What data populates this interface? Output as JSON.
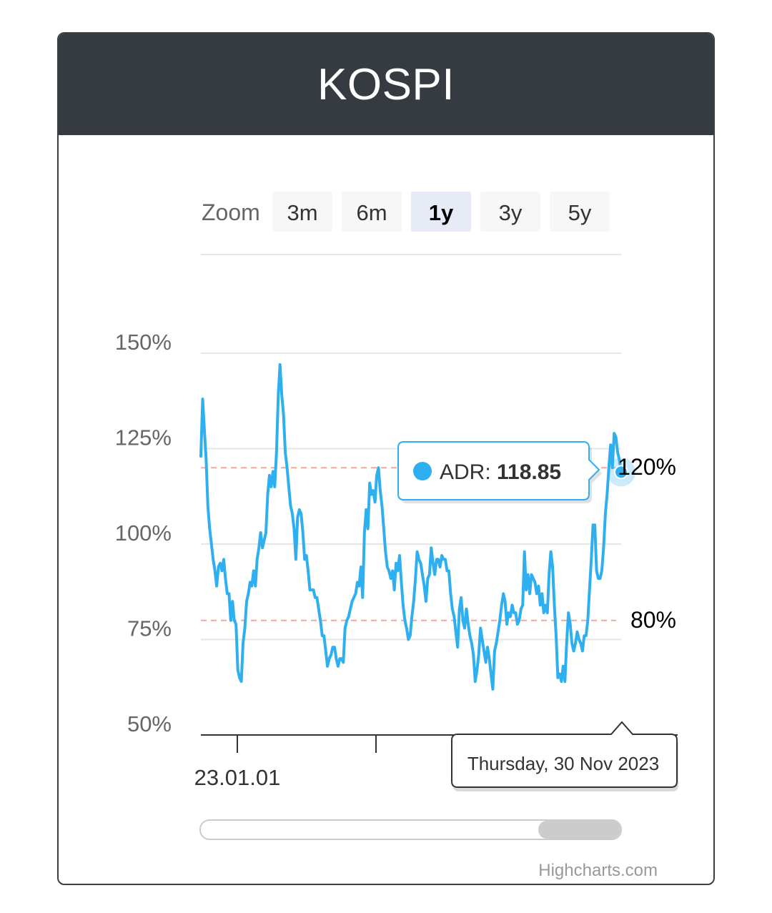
{
  "header": {
    "title": "KOSPI"
  },
  "range_selector": {
    "label": "Zoom",
    "buttons": [
      {
        "label": "3m",
        "active": false
      },
      {
        "label": "6m",
        "active": false
      },
      {
        "label": "1y",
        "active": true
      },
      {
        "label": "3y",
        "active": false
      },
      {
        "label": "5y",
        "active": false
      }
    ]
  },
  "credits": "Highcharts.com",
  "colors": {
    "header_bg": "#363b42",
    "series": "#2eaff0",
    "plot_line": "#f0a8a0",
    "button_bg": "#f7f7f7",
    "button_active_bg": "#e6ebf5"
  },
  "chart_data": {
    "type": "line",
    "y_axis": {
      "min": 50,
      "max": 150,
      "ticks": [
        50,
        75,
        100,
        125,
        150
      ],
      "tick_suffix": "%"
    },
    "x_axis": {
      "tick_labels": [
        "23.01.01"
      ]
    },
    "plot_lines": [
      {
        "value": 120,
        "label": "120%"
      },
      {
        "value": 80,
        "label": "80%"
      }
    ],
    "series": [
      {
        "name": "ADR",
        "values": [
          123,
          138,
          130,
          122,
          110,
          104,
          100,
          96,
          93,
          89,
          94,
          95,
          93,
          96,
          91,
          87,
          87,
          80,
          85,
          80,
          79,
          67,
          65,
          64,
          74,
          78,
          85,
          87,
          90,
          89,
          93,
          89,
          96,
          99,
          103,
          99,
          101,
          103,
          113,
          118,
          115,
          119,
          115,
          124,
          139,
          147,
          139,
          134,
          124,
          120,
          115,
          110,
          108,
          104,
          96,
          107,
          109,
          108,
          103,
          96,
          97,
          93,
          88,
          88,
          88,
          86,
          86,
          83,
          80,
          76,
          76,
          72,
          68,
          70,
          71,
          73,
          73,
          70,
          68,
          70,
          70,
          69,
          78,
          80,
          81,
          83,
          85,
          86,
          87,
          90,
          89,
          94,
          86,
          103,
          109,
          104,
          116,
          113,
          114,
          111,
          118,
          120,
          114,
          110,
          104,
          98,
          94,
          93,
          91,
          93,
          88,
          95,
          93,
          97,
          90,
          84,
          80,
          78,
          75,
          76,
          81,
          85,
          91,
          98,
          96,
          95,
          92,
          89,
          85,
          91,
          92,
          99,
          95,
          92,
          96,
          96,
          94,
          97,
          96,
          96,
          93,
          93,
          87,
          83,
          81,
          77,
          73,
          83,
          86,
          80,
          78,
          83,
          79,
          76,
          74,
          71,
          64,
          67,
          71,
          78,
          75,
          72,
          69,
          73,
          70,
          66,
          62,
          72,
          74,
          77,
          80,
          84,
          87,
          85,
          79,
          82,
          81,
          84,
          82,
          82,
          79,
          80,
          83,
          84,
          98,
          88,
          92,
          87,
          92,
          91,
          90,
          87,
          89,
          84,
          87,
          82,
          84,
          82,
          92,
          98,
          94,
          84,
          76,
          65,
          66,
          64,
          68,
          64,
          74,
          82,
          79,
          74,
          72,
          74,
          77,
          75,
          74,
          72,
          76,
          76,
          80,
          88,
          96,
          105,
          105,
          93,
          91,
          91,
          93,
          99,
          108,
          113,
          120,
          126,
          120,
          129,
          128,
          124,
          122,
          119
        ]
      }
    ],
    "tooltip": {
      "series": "ADR",
      "value": "118.85",
      "date": "Thursday, 30 Nov 2023"
    }
  }
}
